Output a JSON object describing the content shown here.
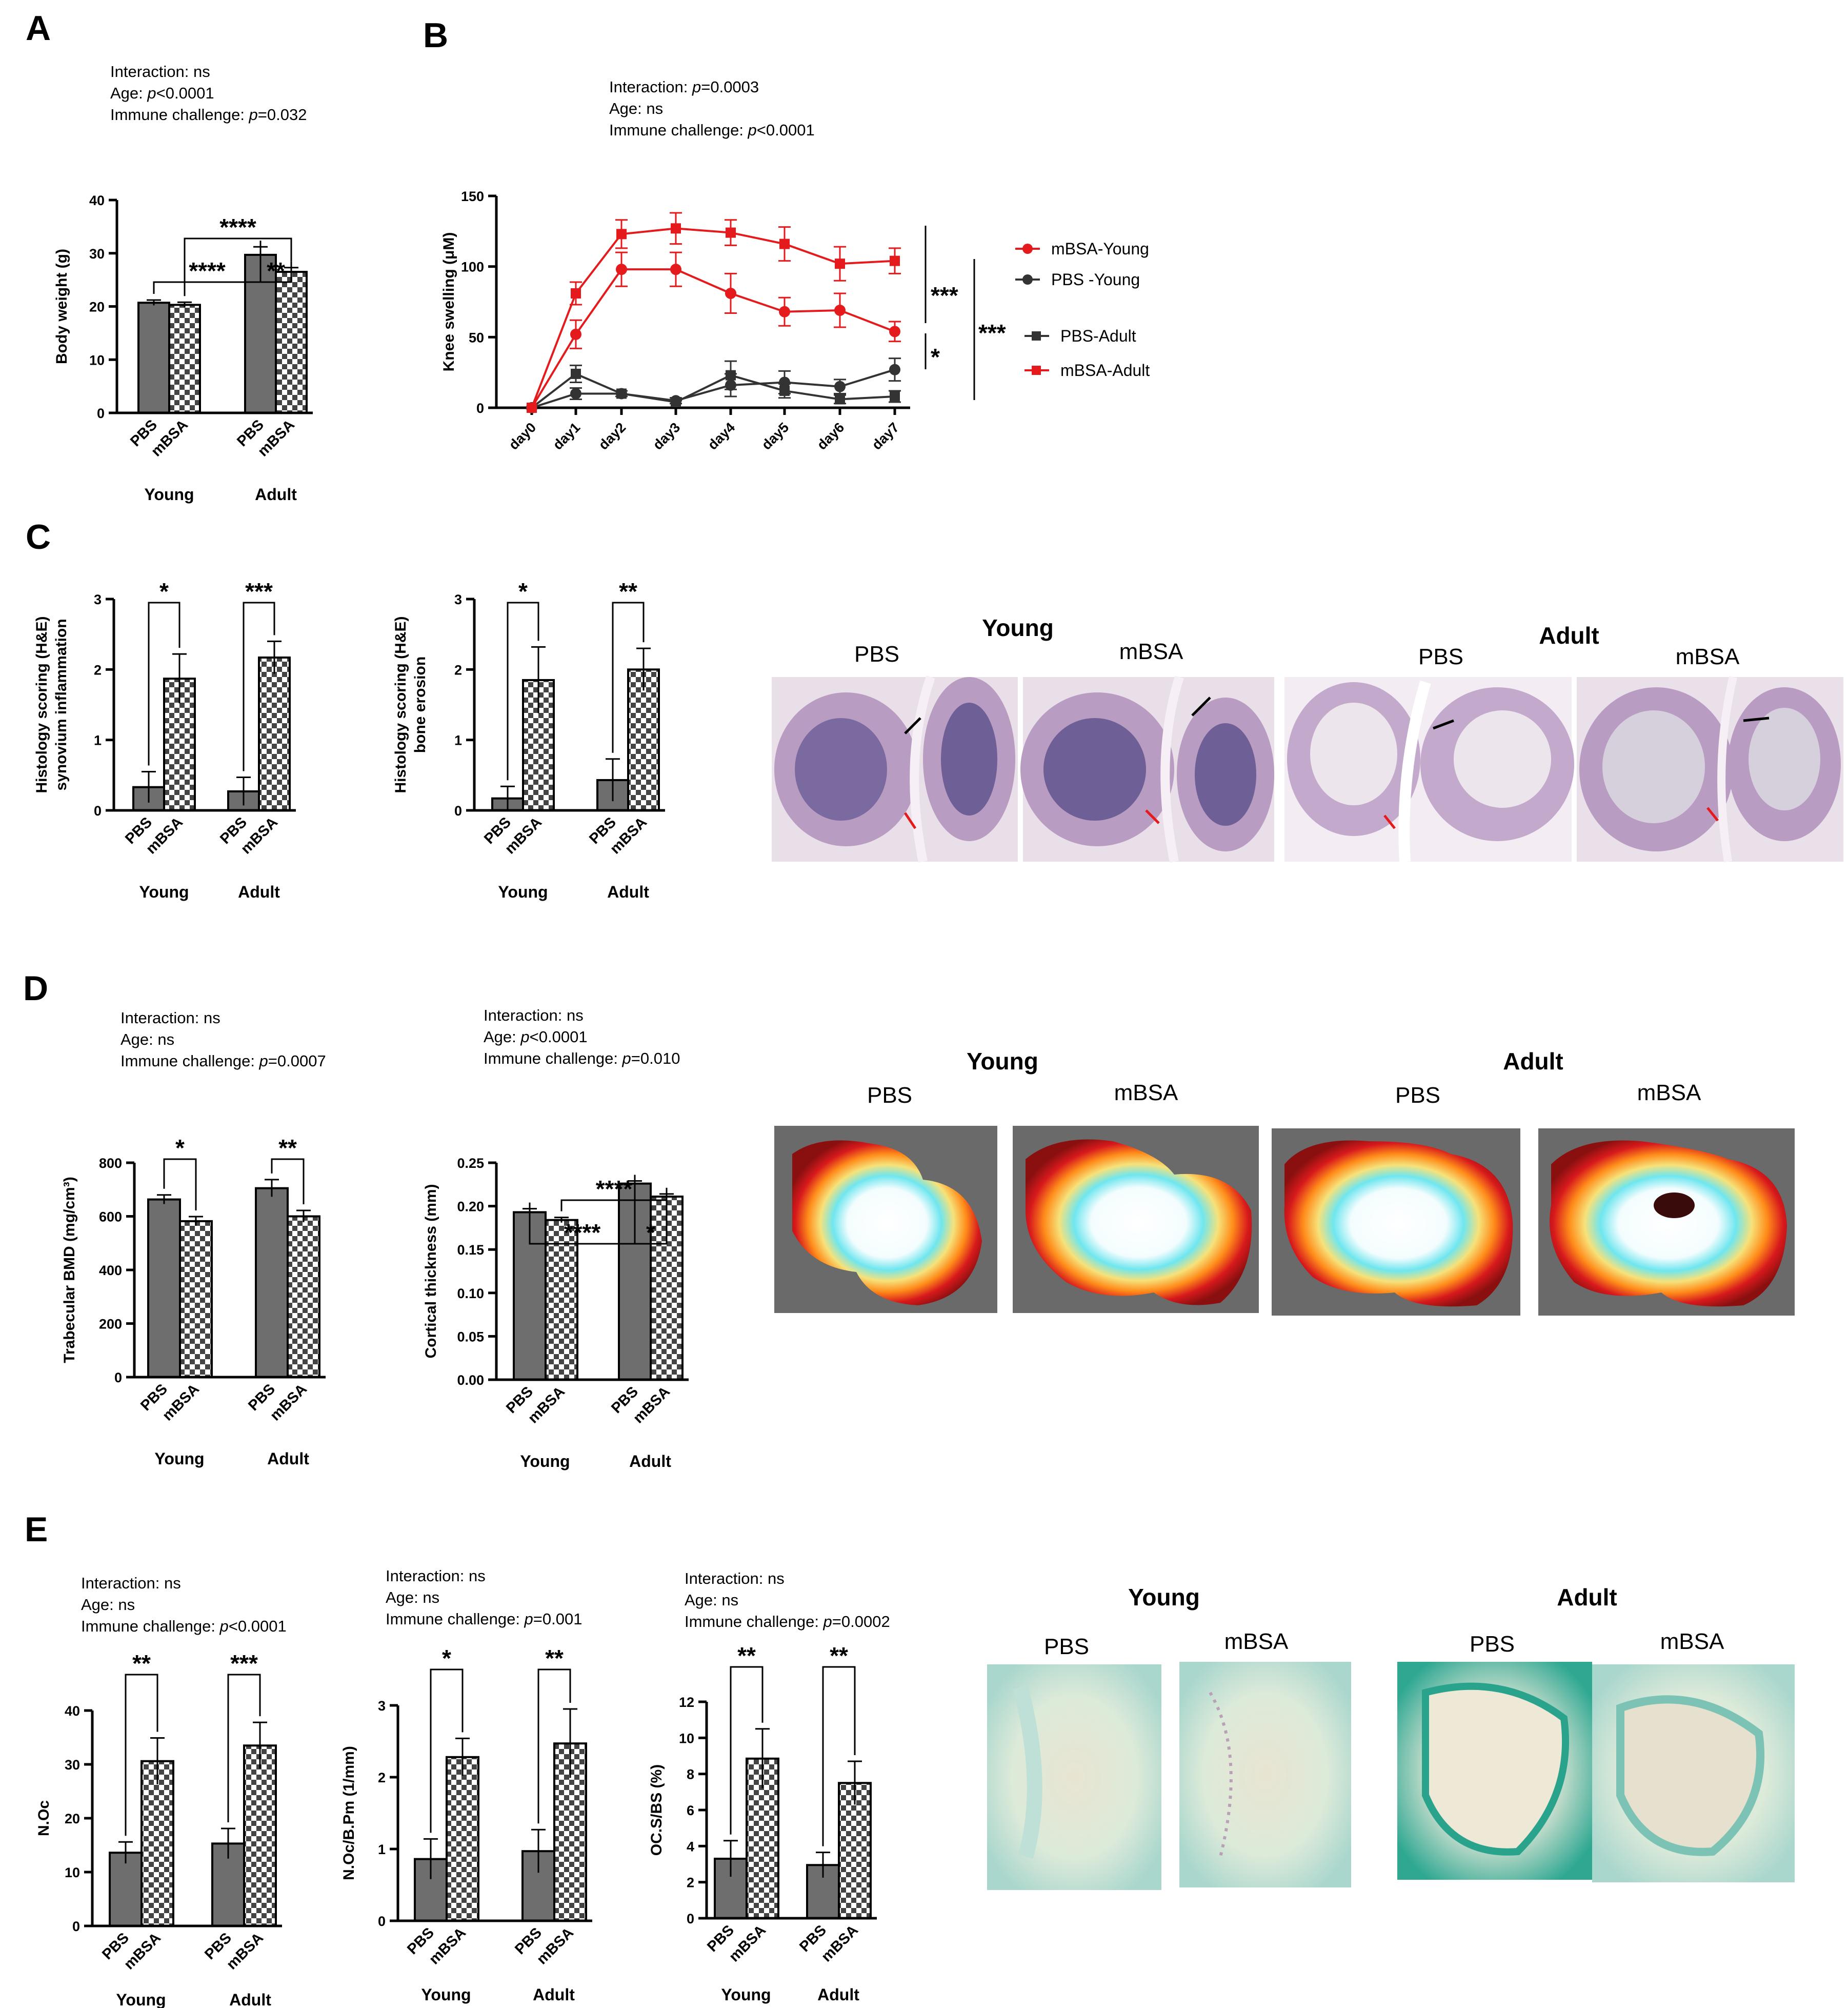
{
  "panel_labels": [
    "A",
    "B",
    "C",
    "D",
    "E"
  ],
  "image_panels": {
    "C": {
      "group_labels": [
        "Young",
        "Adult"
      ],
      "image_labels": [
        "PBS",
        "mBSA",
        "PBS",
        "mBSA"
      ]
    },
    "D": {
      "group_labels": [
        "Young",
        "Adult"
      ],
      "image_labels": [
        "PBS",
        "mBSA",
        "PBS",
        "mBSA"
      ]
    },
    "E": {
      "group_labels": [
        "Young",
        "Adult"
      ],
      "image_labels": [
        "PBS",
        "mBSA",
        "PBS",
        "mBSA"
      ]
    }
  },
  "colors": {
    "pbs_bar": "#6e6e6e",
    "mbsa_pattern": "checkerboard",
    "young_line": "#e41a1c",
    "pbs_line": "#333333",
    "he_stain": "#b59ac0",
    "trap_stain": "#8fc9be"
  },
  "chart_data": [
    {
      "id": "A",
      "type": "bar",
      "title": "",
      "xlabel": "",
      "ylabel": "Body weight (g)",
      "ylim": [
        0,
        40
      ],
      "yticks": [
        "0",
        "10",
        "20",
        "30",
        "40"
      ],
      "stats": [
        "Interaction: ns",
        "Age: p<0.0001",
        "Immune challenge: p=0.032"
      ],
      "groups": [
        "Young",
        "Adult"
      ],
      "categories": [
        "PBS",
        "mBSA",
        "PBS",
        "mBSA"
      ],
      "values": [
        20.7,
        20.3,
        29.7,
        26.5
      ],
      "errors": [
        0.5,
        0.5,
        1.5,
        0.8
      ],
      "significance": [
        {
          "from": 0,
          "to": 2,
          "label": "****"
        },
        {
          "from": 2,
          "to": 3,
          "label": "**"
        },
        {
          "from": 1,
          "to": 3,
          "label": "****"
        }
      ]
    },
    {
      "id": "B",
      "type": "line",
      "title": "",
      "xlabel": "",
      "ylabel": "Knee swelling (μM)",
      "ylim": [
        0,
        150
      ],
      "yticks": [
        "0",
        "50",
        "100",
        "150"
      ],
      "stats": [
        "Interaction: p=0.0003",
        "Age: ns",
        "Immune challenge: p<0.0001"
      ],
      "x": [
        "day0",
        "day1",
        "day2",
        "day3",
        "day4",
        "day5",
        "day6",
        "day7"
      ],
      "series": [
        {
          "name": "mBSA-Young",
          "marker": "circle",
          "color": "#e41a1c",
          "values": [
            0,
            52,
            98,
            98,
            81,
            68,
            69,
            54
          ],
          "errors": [
            0,
            10,
            12,
            12,
            14,
            10,
            12,
            7
          ]
        },
        {
          "name": "PBS -Young",
          "marker": "circle",
          "color": "#333333",
          "values": [
            0,
            10,
            10,
            5,
            16,
            18,
            15,
            27
          ],
          "errors": [
            0,
            4,
            2,
            2,
            8,
            8,
            5,
            8
          ]
        },
        {
          "name": "PBS-Adult",
          "marker": "square",
          "color": "#333333",
          "values": [
            0,
            24,
            10,
            4,
            23,
            12,
            6,
            8
          ],
          "errors": [
            0,
            6,
            2,
            1,
            10,
            5,
            3,
            4
          ]
        },
        {
          "name": "mBSA-Adult",
          "marker": "square",
          "color": "#e41a1c",
          "values": [
            0,
            81,
            123,
            127,
            124,
            116,
            102,
            104
          ],
          "errors": [
            0,
            8,
            10,
            11,
            9,
            12,
            12,
            9
          ]
        }
      ],
      "significance": [
        {
          "label": "***",
          "pair": [
            "mBSA-Young",
            "mBSA-Adult"
          ]
        },
        {
          "label": "*",
          "pair": [
            "mBSA-Young",
            "PBS -Young"
          ]
        },
        {
          "label": "***",
          "pair": [
            "mBSA-Adult",
            "PBS-Adult"
          ]
        }
      ]
    },
    {
      "id": "C1",
      "type": "bar",
      "title": "",
      "xlabel": "",
      "ylabel": [
        "Histology scoring (H&E)",
        "synovium inflammation"
      ],
      "ylim": [
        0,
        3
      ],
      "yticks": [
        "0",
        "1",
        "2",
        "3"
      ],
      "stats": [],
      "groups": [
        "Young",
        "Adult"
      ],
      "categories": [
        "PBS",
        "mBSA",
        "PBS",
        "mBSA"
      ],
      "values": [
        0.33,
        1.87,
        0.27,
        2.17
      ],
      "errors": [
        0.22,
        0.35,
        0.2,
        0.23
      ],
      "significance": [
        {
          "from": 0,
          "to": 1,
          "label": "*"
        },
        {
          "from": 2,
          "to": 3,
          "label": "***"
        }
      ]
    },
    {
      "id": "C2",
      "type": "bar",
      "title": "",
      "xlabel": "",
      "ylabel": [
        "Histology scoring (H&E)",
        "bone erosion"
      ],
      "ylim": [
        0,
        3
      ],
      "yticks": [
        "0",
        "1",
        "2",
        "3"
      ],
      "stats": [],
      "groups": [
        "Young",
        "Adult"
      ],
      "categories": [
        "PBS",
        "mBSA",
        "PBS",
        "mBSA"
      ],
      "values": [
        0.17,
        1.85,
        0.43,
        2.0
      ],
      "errors": [
        0.17,
        0.47,
        0.3,
        0.3
      ],
      "significance": [
        {
          "from": 0,
          "to": 1,
          "label": "*"
        },
        {
          "from": 2,
          "to": 3,
          "label": "**"
        }
      ]
    },
    {
      "id": "D1",
      "type": "bar",
      "title": "",
      "xlabel": "",
      "ylabel": "Trabecular BMD (mg/cm³)",
      "ylim": [
        0,
        800
      ],
      "yticks": [
        "0",
        "200",
        "400",
        "600",
        "800"
      ],
      "stats": [
        "Interaction: ns",
        "Age: ns",
        "Immune challenge: p=0.0007"
      ],
      "groups": [
        "Young",
        "Adult"
      ],
      "categories": [
        "PBS",
        "mBSA",
        "PBS",
        "mBSA"
      ],
      "values": [
        663,
        582,
        705,
        600
      ],
      "errors": [
        17,
        17,
        32,
        22
      ],
      "significance": [
        {
          "from": 0,
          "to": 1,
          "label": "*"
        },
        {
          "from": 2,
          "to": 3,
          "label": "**"
        }
      ]
    },
    {
      "id": "D2",
      "type": "bar",
      "title": "",
      "xlabel": "",
      "ylabel": "Cortical thickness (mm)",
      "ylim": [
        0,
        0.25
      ],
      "yticks": [
        "0.00",
        "0.05",
        "0.10",
        "0.15",
        "0.20",
        "0.25"
      ],
      "stats": [
        "Interaction: ns",
        "Age: p<0.0001",
        "Immune challenge: p=0.010"
      ],
      "groups": [
        "Young",
        "Adult"
      ],
      "categories": [
        "PBS",
        "mBSA",
        "PBS",
        "mBSA"
      ],
      "values": [
        0.193,
        0.184,
        0.226,
        0.211
      ],
      "errors": [
        0.004,
        0.003,
        0.003,
        0.003
      ],
      "significance": [
        {
          "from": 0,
          "to": 2,
          "label": "****"
        },
        {
          "from": 2,
          "to": 3,
          "label": "*"
        },
        {
          "from": 1,
          "to": 3,
          "label": "****"
        }
      ]
    },
    {
      "id": "E1",
      "type": "bar",
      "title": "",
      "xlabel": "",
      "ylabel": "N.Oc",
      "ylim": [
        0,
        40
      ],
      "yticks": [
        "0",
        "10",
        "20",
        "30",
        "40"
      ],
      "stats": [
        "Interaction: ns",
        "Age: ns",
        "Immune challenge: p<0.0001"
      ],
      "groups": [
        "Young",
        "Adult"
      ],
      "categories": [
        "PBS",
        "mBSA",
        "PBS",
        "mBSA"
      ],
      "values": [
        13.6,
        30.6,
        15.3,
        33.5
      ],
      "errors": [
        2.0,
        4.3,
        2.8,
        4.3
      ],
      "significance": [
        {
          "from": 0,
          "to": 1,
          "label": "**"
        },
        {
          "from": 2,
          "to": 3,
          "label": "***"
        }
      ]
    },
    {
      "id": "E2",
      "type": "bar",
      "title": "",
      "xlabel": "",
      "ylabel": "N.Oc/B.Pm (1/mm)",
      "ylim": [
        0,
        3
      ],
      "yticks": [
        "0",
        "1",
        "2",
        "3"
      ],
      "stats": [
        "Interaction: ns",
        "Age: ns",
        "Immune challenge: p=0.001"
      ],
      "groups": [
        "Young",
        "Adult"
      ],
      "categories": [
        "PBS",
        "mBSA",
        "PBS",
        "mBSA"
      ],
      "values": [
        0.86,
        2.28,
        0.97,
        2.47
      ],
      "errors": [
        0.28,
        0.26,
        0.3,
        0.48
      ],
      "significance": [
        {
          "from": 0,
          "to": 1,
          "label": "*"
        },
        {
          "from": 2,
          "to": 3,
          "label": "**"
        }
      ]
    },
    {
      "id": "E3",
      "type": "bar",
      "title": "",
      "xlabel": "",
      "ylabel": "OC.S/BS (%)",
      "ylim": [
        0,
        12
      ],
      "yticks": [
        "0",
        "2",
        "4",
        "6",
        "8",
        "10",
        "12"
      ],
      "stats": [
        "Interaction: ns",
        "Age: ns",
        "Immune challenge: p=0.0002"
      ],
      "groups": [
        "Young",
        "Adult"
      ],
      "categories": [
        "PBS",
        "mBSA",
        "PBS",
        "mBSA"
      ],
      "values": [
        3.3,
        8.85,
        2.95,
        7.5
      ],
      "errors": [
        1.0,
        1.65,
        0.7,
        1.2
      ],
      "significance": [
        {
          "from": 0,
          "to": 1,
          "label": "**"
        },
        {
          "from": 2,
          "to": 3,
          "label": "**"
        }
      ]
    }
  ]
}
